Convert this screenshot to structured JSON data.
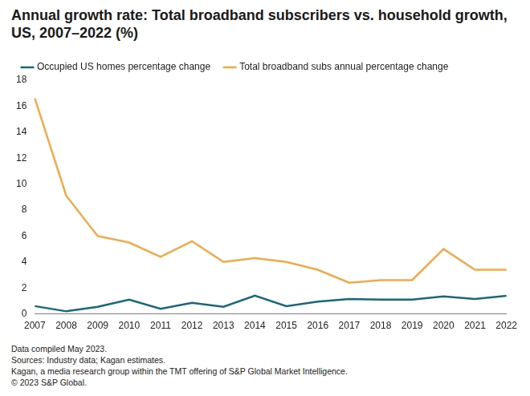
{
  "chart_data": {
    "type": "line",
    "title": "Annual growth rate: Total broadband subscribers vs. household growth, US, 2007–2022  (%)",
    "categories": [
      "2007",
      "2008",
      "2009",
      "2010",
      "2011",
      "2012",
      "2013",
      "2014",
      "2015",
      "2016",
      "2017",
      "2018",
      "2019",
      "2020",
      "2021",
      "2022"
    ],
    "series": [
      {
        "name": "Occupied US homes percentage change",
        "color": "#17687a",
        "values": [
          0.6,
          0.2,
          0.55,
          1.1,
          0.4,
          0.85,
          0.55,
          1.4,
          0.6,
          0.95,
          1.15,
          1.1,
          1.1,
          1.35,
          1.15,
          1.4
        ]
      },
      {
        "name": "Total broadband subs annual percentage change",
        "color": "#f2a94a",
        "values": [
          16.6,
          9.1,
          6.0,
          5.5,
          4.4,
          5.6,
          4.0,
          4.3,
          4.0,
          3.4,
          2.4,
          2.6,
          2.6,
          5.0,
          3.4,
          3.4
        ]
      }
    ],
    "ylim": [
      0,
      18
    ],
    "yticks": [
      0,
      2,
      4,
      6,
      8,
      10,
      12,
      14,
      16,
      18
    ],
    "grid": false,
    "legend": "top",
    "footnotes": [
      "Data compiled May 2023.",
      "Sources: Industry data; Kagan estimates.",
      "Kagan, a media research group within the TMT offering of S&P Global Market Intelligence.",
      "© 2023 S&P Global."
    ]
  }
}
